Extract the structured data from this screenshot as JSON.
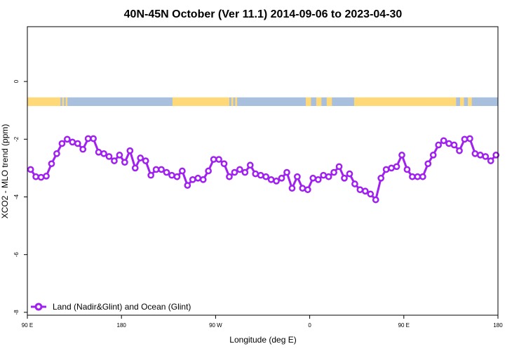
{
  "chart_data": {
    "type": "line",
    "title": "40N-45N October (Ver 11.1)   2014-09-06 to 2023-04-30",
    "xlabel": "Longitude (deg E)",
    "ylabel": "XCO2 - MLO trend (ppm)",
    "xlim": [
      90,
      450
    ],
    "ylim": [
      -8.1,
      1.9
    ],
    "x_ticks": [
      {
        "value": 90,
        "label": "90 E"
      },
      {
        "value": 162,
        "label": "180"
      },
      {
        "value": 234,
        "label": "90 W"
      },
      {
        "value": 306,
        "label": "0"
      },
      {
        "value": 378,
        "label": "90 E"
      },
      {
        "value": 450,
        "label": "180"
      }
    ],
    "y_ticks": [
      {
        "value": 0,
        "label": "0"
      },
      {
        "value": -2,
        "label": "-2"
      },
      {
        "value": -4,
        "label": "-4"
      },
      {
        "value": -6,
        "label": "-6"
      },
      {
        "value": -8,
        "label": "-8"
      }
    ],
    "legend": {
      "position": "bottom-left"
    },
    "series": [
      {
        "name": "Land (Nadir&Glint) and Ocean (Glint)",
        "color": "#a020f0",
        "x": [
          92.5,
          96.5,
          100.5,
          104.5,
          108.5,
          112.5,
          116.5,
          120.5,
          124.5,
          128.5,
          132.5,
          136.5,
          140.5,
          144.5,
          148.5,
          152.5,
          156.5,
          160.5,
          164.5,
          168.5,
          172.5,
          176.5,
          180.5,
          184.5,
          188.5,
          192.5,
          196.5,
          200.5,
          204.5,
          208.5,
          212.5,
          216.5,
          220.5,
          224.5,
          228.5,
          232.5,
          236.5,
          240.5,
          244.5,
          248.5,
          252.5,
          256.5,
          260.5,
          264.5,
          268.5,
          272.5,
          276.5,
          280.5,
          284.5,
          288.5,
          292.5,
          296.5,
          300.5,
          304.5,
          308.5,
          312.5,
          316.5,
          320.5,
          324.5,
          328.5,
          332.5,
          336.5,
          340.5,
          344.5,
          348.5,
          352.5,
          356.5,
          360.5,
          364.5,
          368.5,
          372.5,
          376.5,
          380.5,
          384.5,
          388.5,
          392.5,
          396.5,
          400.5,
          404.5,
          408.5,
          412.5,
          416.5,
          420.5,
          424.5,
          428.5,
          432.5,
          436.5,
          440.5,
          444.5,
          448.5
        ],
        "values": [
          -3.05,
          -3.3,
          -3.32,
          -3.28,
          -2.85,
          -2.5,
          -2.15,
          -2.0,
          -2.1,
          -2.15,
          -2.35,
          -1.98,
          -1.98,
          -2.45,
          -2.5,
          -2.6,
          -2.75,
          -2.55,
          -2.8,
          -2.4,
          -3.0,
          -2.65,
          -2.75,
          -3.25,
          -3.05,
          -3.05,
          -3.15,
          -3.25,
          -3.3,
          -3.1,
          -3.6,
          -3.4,
          -3.35,
          -3.4,
          -3.1,
          -2.7,
          -2.7,
          -2.85,
          -3.3,
          -3.15,
          -3.05,
          -3.15,
          -2.9,
          -3.2,
          -3.25,
          -3.3,
          -3.4,
          -3.45,
          -3.35,
          -3.15,
          -3.7,
          -3.3,
          -3.7,
          -3.75,
          -3.35,
          -3.4,
          -3.25,
          -3.3,
          -3.15,
          -2.95,
          -3.35,
          -3.2,
          -3.55,
          -3.75,
          -3.8,
          -3.9,
          -4.1,
          -3.35,
          -3.05,
          -3.0,
          -2.95,
          -2.55,
          -3.05,
          -3.3,
          -3.3,
          -3.3,
          -2.85,
          -2.55,
          -2.2,
          -2.05,
          -2.15,
          -2.2,
          -2.4,
          -2.0,
          -1.98,
          -2.5,
          -2.55,
          -2.6,
          -2.75,
          -2.55
        ]
      }
    ],
    "surface_band": {
      "y_range": [
        -0.55,
        -0.85
      ],
      "land_color": "#ffd978",
      "ocean_color": "#a8bfde",
      "segments": [
        {
          "from": 90,
          "to": 114,
          "type": "land"
        },
        {
          "from": 114,
          "to": 122,
          "type": "mixed"
        },
        {
          "from": 122,
          "to": 201,
          "type": "ocean"
        },
        {
          "from": 201,
          "to": 243,
          "type": "land"
        },
        {
          "from": 243,
          "to": 252,
          "type": "mixed"
        },
        {
          "from": 252,
          "to": 303,
          "type": "ocean"
        },
        {
          "from": 303,
          "to": 327,
          "type": "mixed"
        },
        {
          "from": 327,
          "to": 340,
          "type": "ocean"
        },
        {
          "from": 340,
          "to": 349,
          "type": "land"
        },
        {
          "from": 349,
          "to": 399,
          "type": "land"
        },
        {
          "from": 399,
          "to": 415,
          "type": "land"
        },
        {
          "from": 415,
          "to": 433,
          "type": "mixed"
        },
        {
          "from": 433,
          "to": 450,
          "type": "ocean"
        }
      ]
    }
  }
}
